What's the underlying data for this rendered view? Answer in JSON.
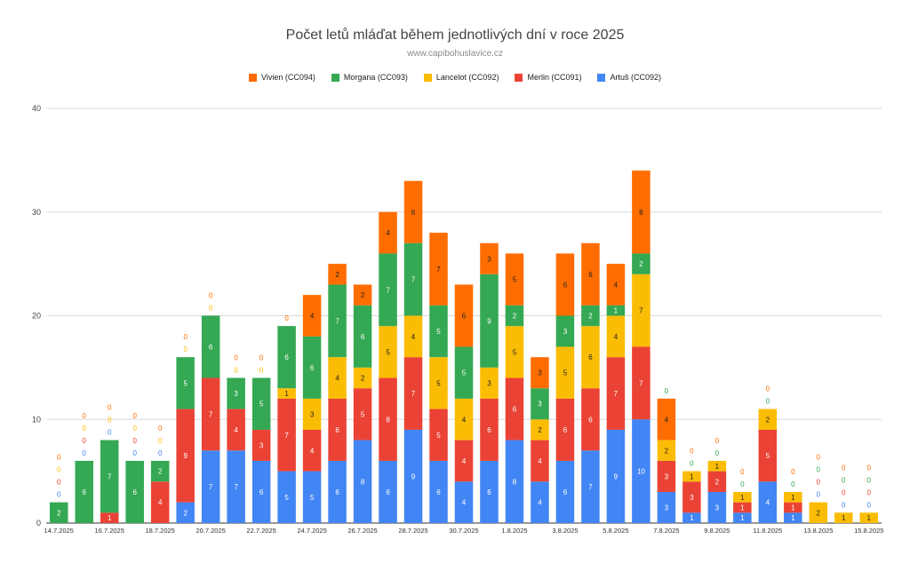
{
  "chart_data": {
    "type": "bar",
    "stacked": true,
    "title": "Počet letů mláďat během jednotlivých dní v roce 2025",
    "subtitle": "www.capibohuslavice.cz",
    "xlabel": "",
    "ylabel": "",
    "ylim": [
      0,
      40
    ],
    "yticks": [
      "0",
      "10",
      "20",
      "30",
      "40"
    ],
    "grid": true,
    "legend_position": "top",
    "categories": [
      "14.7.2025",
      "15.7.2025",
      "16.7.2025",
      "17.7.2025",
      "18.7.2025",
      "19.7.2025",
      "20.7.2025",
      "21.7.2025",
      "22.7.2025",
      "23.7.2025",
      "24.7.2025",
      "25.7.2025",
      "26.7.2025",
      "27.7.2025",
      "28.7.2025",
      "29.7.2025",
      "30.7.2025",
      "31.7.2025",
      "1.8.2025",
      "2.8.2025",
      "3.8.2025",
      "4.8.2025",
      "5.8.2025",
      "6.8.2025",
      "7.8.2025",
      "8.8.2025",
      "9.8.2025",
      "10.8.2025",
      "11.8.2025",
      "12.8.2025",
      "13.8.2025",
      "14.8.2025",
      "15.8.2025"
    ],
    "xtick_labels": [
      "14.7.2025",
      "",
      "16.7.2025",
      "",
      "18.7.2025",
      "",
      "20.7.2025",
      "",
      "22.7.2025",
      "",
      "24.7.2025",
      "",
      "26.7.2025",
      "",
      "28.7.2025",
      "",
      "30.7.2025",
      "",
      "1.8.2025",
      "",
      "3.8.2025",
      "",
      "5.8.2025",
      "",
      "7.8.2025",
      "",
      "9.8.2025",
      "",
      "11.8.2025",
      "",
      "13.8.2025",
      "",
      "15.8.2025"
    ],
    "legend_order": [
      "Vivien (CC094)",
      "Morgana (CC093)",
      "Lancelot (CC092)",
      "Merlin (CC091)",
      "Artuš (CC092)"
    ],
    "series": [
      {
        "name": "Artuš (CC092)",
        "color": "#4285f4",
        "values": [
          0,
          0,
          0,
          0,
          0,
          2,
          7,
          7,
          6,
          5,
          5,
          6,
          8,
          6,
          9,
          6,
          4,
          6,
          8,
          4,
          6,
          7,
          9,
          10,
          3,
          1,
          3,
          1,
          4,
          1,
          0,
          0,
          0
        ]
      },
      {
        "name": "Merlin (CC091)",
        "color": "#ea4335",
        "values": [
          0,
          0,
          1,
          0,
          4,
          9,
          7,
          4,
          3,
          7,
          4,
          6,
          5,
          8,
          7,
          5,
          4,
          6,
          6,
          4,
          6,
          6,
          7,
          7,
          3,
          3,
          2,
          1,
          5,
          1,
          0,
          0,
          0
        ]
      },
      {
        "name": "Lancelot (CC092)",
        "color": "#fbbc04",
        "values": [
          0,
          0,
          0,
          0,
          0,
          0,
          0,
          0,
          0,
          1,
          3,
          4,
          2,
          5,
          4,
          5,
          4,
          3,
          5,
          2,
          5,
          6,
          4,
          7,
          2,
          1,
          1,
          1,
          2,
          1,
          2,
          1,
          1
        ]
      },
      {
        "name": "Morgana (CC093)",
        "color": "#34a853",
        "values": [
          2,
          6,
          7,
          6,
          2,
          5,
          6,
          3,
          5,
          6,
          6,
          7,
          6,
          7,
          7,
          5,
          5,
          9,
          2,
          3,
          3,
          2,
          1,
          2,
          0,
          0,
          0,
          0,
          0,
          0,
          0,
          0,
          0
        ]
      },
      {
        "name": "Vivien (CC094)",
        "color": "#ff6d01",
        "values": [
          0,
          0,
          0,
          0,
          0,
          0,
          0,
          0,
          0,
          0,
          4,
          2,
          2,
          4,
          6,
          7,
          6,
          3,
          5,
          3,
          6,
          6,
          4,
          8,
          4,
          0,
          0,
          0,
          0,
          0,
          0,
          0,
          0
        ]
      }
    ]
  }
}
